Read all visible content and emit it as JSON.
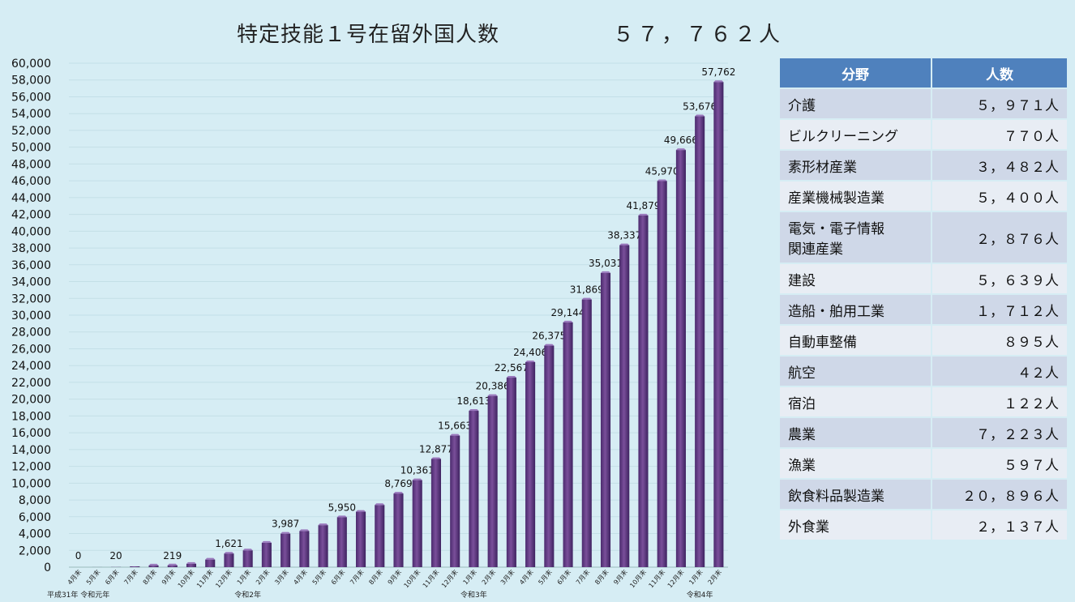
{
  "header": {
    "title": "特定技能１号在留外国人数",
    "total": "５７，７６２人"
  },
  "chart_data": {
    "type": "bar",
    "categories": [
      "4月末",
      "5月末",
      "6月末",
      "7月末",
      "8月末",
      "9月末",
      "10月末",
      "11月末",
      "12月末",
      "1月末",
      "2月末",
      "3月末",
      "4月末",
      "5月末",
      "6月末",
      "7月末",
      "8月末",
      "9月末",
      "10月末",
      "11月末",
      "12月末",
      "1月末",
      "2月末",
      "3月末",
      "4月末",
      "5月末",
      "6月末",
      "7月末",
      "8月末",
      "9月末",
      "10月末",
      "11月末",
      "12月末",
      "1月末",
      "2月末"
    ],
    "values": [
      0,
      7,
      20,
      100,
      200,
      219,
      400,
      900,
      1621,
      2000,
      2900,
      3987,
      4300,
      5000,
      5950,
      6600,
      7400,
      8769,
      10361,
      12877,
      15663,
      18613,
      20386,
      22567,
      24406,
      26375,
      29144,
      31869,
      35031,
      38337,
      41879,
      45970,
      49666,
      53676,
      57762
    ],
    "data_labels": {
      "0": "0",
      "2": "20",
      "5": "219",
      "8": "1,621",
      "11": "3,987",
      "14": "5,950",
      "17": "8,769",
      "18": "10,361",
      "19": "12,877",
      "20": "15,663",
      "21": "18,613",
      "22": "20,386",
      "23": "22,567",
      "24": "24,406",
      "25": "26,375",
      "26": "29,144",
      "27": "31,869",
      "28": "35,031",
      "29": "38,337",
      "30": "41,879",
      "31": "45,970",
      "32": "49,666",
      "33": "53,676",
      "34": "57,762"
    },
    "year_labels": [
      {
        "text": "平成31年 令和元年",
        "index": 0
      },
      {
        "text": "令和2年",
        "index": 9
      },
      {
        "text": "令和3年",
        "index": 21
      },
      {
        "text": "令和4年",
        "index": 33
      }
    ],
    "ylim": [
      0,
      60000
    ],
    "ytick_step": 2000,
    "bar_color": "#7a4f9a"
  },
  "table": {
    "headers": [
      "分野",
      "人数"
    ],
    "rows": [
      {
        "name": "介護",
        "value": "５，９７１人"
      },
      {
        "name": "ビルクリーニング",
        "value": "７７０人"
      },
      {
        "name": "素形材産業",
        "value": "３，４８２人"
      },
      {
        "name": "産業機械製造業",
        "value": "５，４００人"
      },
      {
        "name": "電気・電子情報\n関連産業",
        "value": "２，８７６人"
      },
      {
        "name": "建設",
        "value": "５，６３９人"
      },
      {
        "name": "造船・舶用工業",
        "value": "１，７１２人"
      },
      {
        "name": "自動車整備",
        "value": "８９５人"
      },
      {
        "name": "航空",
        "value": "４２人"
      },
      {
        "name": "宿泊",
        "value": "１２２人"
      },
      {
        "name": "農業",
        "value": "７，２２３人"
      },
      {
        "name": "漁業",
        "value": "５９７人"
      },
      {
        "name": "飲食料品製造業",
        "value": "２０，８９６人"
      },
      {
        "name": "外食業",
        "value": "２，１３７人"
      }
    ]
  }
}
